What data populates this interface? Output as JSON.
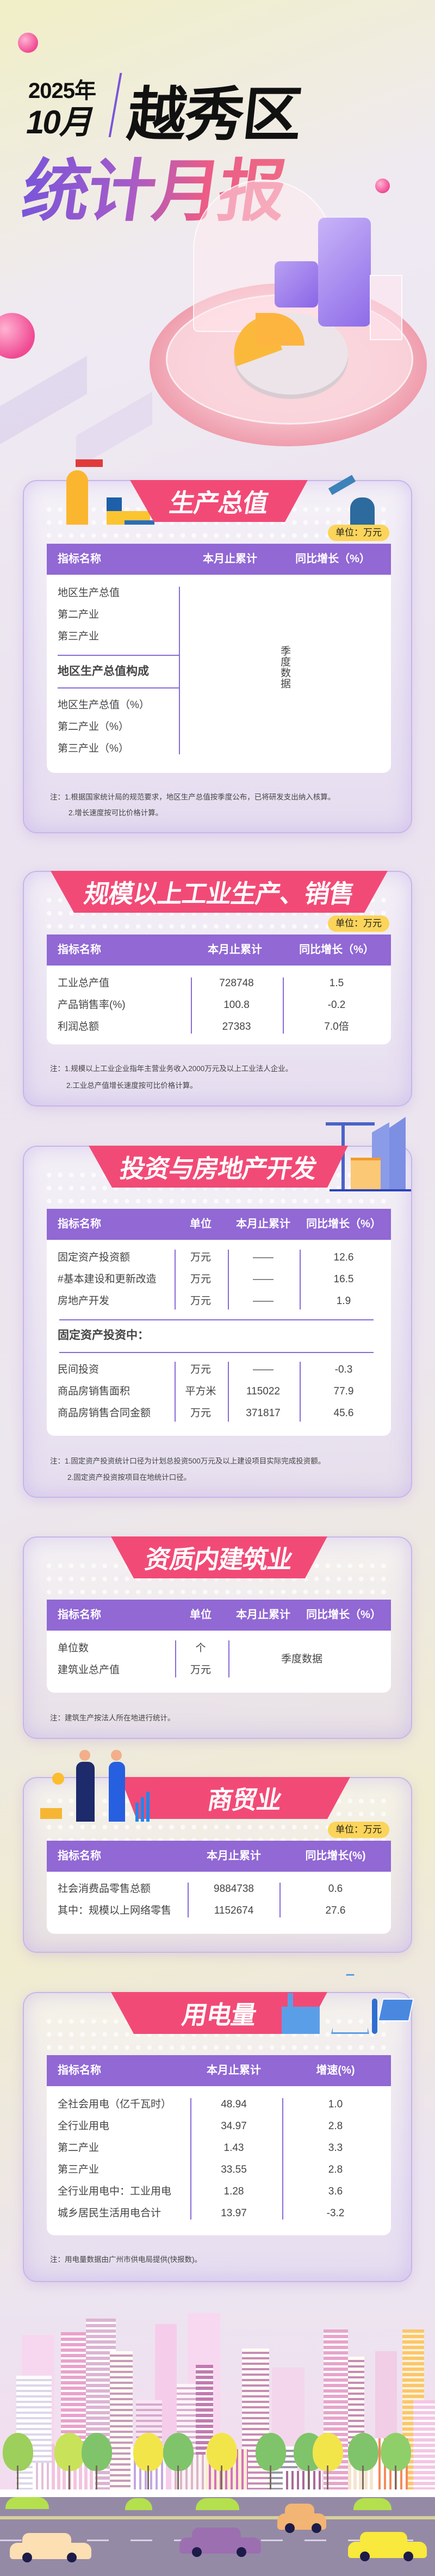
{
  "header": {
    "year": "2025年",
    "month": "10月",
    "district": "越秀区",
    "title": "统计月报"
  },
  "sections": {
    "gdp": {
      "title": "生产总值",
      "unit": "单位：万元",
      "headers": [
        "指标名称",
        "本月止累计",
        "同比增长（%）"
      ],
      "group1": [
        "地区生产总值",
        "第二产业",
        "第三产业"
      ],
      "subheading": "地区生产总值构成",
      "group2": [
        "地区生产总值（%）",
        "第二产业（%）",
        "第三产业（%）"
      ],
      "merged": "季度数据",
      "notes": [
        "注：1.根据国家统计局的规范要求，地区生产总值按季度公布，已将研发支出纳入核算。",
        "2.增长速度按可比价格计算。"
      ]
    },
    "industry": {
      "title": "规模以上工业生产、销售",
      "unit": "单位：万元",
      "headers": [
        "指标名称",
        "本月止累计",
        "同比增长（%）"
      ],
      "rows": [
        [
          "工业总产值",
          "728748",
          "1.5"
        ],
        [
          "产品销售率(%)",
          "100.8",
          "-0.2"
        ],
        [
          "利润总额",
          "27383",
          "7.0倍"
        ]
      ],
      "notes": [
        "注：1.规模以上工业企业指年主营业务收入2000万元及以上工业法人企业。",
        "2.工业总产值增长速度按可比价格计算。"
      ]
    },
    "investment": {
      "title": "投资与房地产开发",
      "headers": [
        "指标名称",
        "单位",
        "本月止累计",
        "同比增长（%）"
      ],
      "rows1": [
        [
          "固定资产投资额",
          "万元",
          "——",
          "12.6"
        ],
        [
          "#基本建设和更新改造",
          "万元",
          "——",
          "16.5"
        ],
        [
          "房地产开发",
          "万元",
          "——",
          "1.9"
        ]
      ],
      "subheading": "固定资产投资中：",
      "rows2": [
        [
          "民间投资",
          "万元",
          "——",
          "-0.3"
        ],
        [
          "商品房销售面积",
          "平方米",
          "115022",
          "77.9"
        ],
        [
          "商品房销售合同金额",
          "万元",
          "371817",
          "45.6"
        ]
      ],
      "notes": [
        "注：1.固定资产投资统计口径为计划总投资500万元及以上建设项目实际完成投资额。",
        "2.固定资产投资按项目在地统计口径。"
      ]
    },
    "construction": {
      "title": "资质内建筑业",
      "headers": [
        "指标名称",
        "单位",
        "本月止累计",
        "同比增长（%）"
      ],
      "rows": [
        [
          "单位数",
          "个"
        ],
        [
          "建筑业总产值",
          "万元"
        ]
      ],
      "merged": "季度数据",
      "notes": [
        "注：建筑生产按法人所在地进行统计。"
      ]
    },
    "trade": {
      "title": "商贸业",
      "unit": "单位：万元",
      "headers": [
        "指标名称",
        "本月止累计",
        "同比增长(%)"
      ],
      "rows": [
        [
          "社会消费品零售总额",
          "9884738",
          "0.6"
        ],
        [
          "其中：规模以上网络零售",
          "1152674",
          "27.6"
        ]
      ]
    },
    "power": {
      "title": "用电量",
      "headers": [
        "指标名称",
        "本月止累计",
        "增速(%)"
      ],
      "rows": [
        [
          "全社会用电（亿千瓦时）",
          "48.94",
          "1.0"
        ],
        [
          "全行业用电",
          "34.97",
          "2.8"
        ],
        [
          "第二产业",
          "1.43",
          "3.3"
        ],
        [
          "第三产业",
          "33.55",
          "2.8"
        ],
        [
          "全行业用电中：工业用电",
          "1.28",
          "3.6"
        ],
        [
          "城乡居民生活用电合计",
          "13.97",
          "-3.2"
        ]
      ],
      "notes": [
        "注：用电量数据由广州市供电局提供(快报数)。"
      ]
    }
  },
  "colors": {
    "banner": "#f24a76",
    "table_header": "#9168d4",
    "unit_badge": "#fbd45a",
    "title_gradient_start": "#7a55d9",
    "title_gradient_end": "#ee6a86"
  },
  "icons": [
    "factory-illustration",
    "robot-arm-illustration",
    "crane-building-illustration",
    "handshake-illustration",
    "power-tower-illustration",
    "city-skyline-illustration"
  ]
}
